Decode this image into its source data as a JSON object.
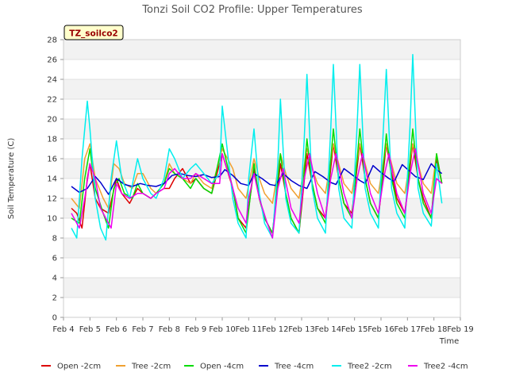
{
  "chart_data": {
    "type": "line",
    "title": "Tonzi Soil CO2 Profile: Upper Temperatures",
    "xlabel": "Time",
    "ylabel": "Soil Temperature (C)",
    "ylim": [
      0,
      28
    ],
    "xlim": [
      4,
      19
    ],
    "y_ticks": [
      0,
      2,
      4,
      6,
      8,
      10,
      12,
      14,
      16,
      18,
      20,
      22,
      24,
      26,
      28
    ],
    "x_ticks": [
      4,
      5,
      6,
      7,
      8,
      9,
      10,
      11,
      12,
      13,
      14,
      15,
      16,
      17,
      18,
      19
    ],
    "x_tick_labels": [
      "Feb 4",
      "Feb 5",
      "Feb 6",
      "Feb 7",
      "Feb 8",
      "Feb 9",
      "Feb 10",
      "Feb 11",
      "Feb 12",
      "Feb 13",
      "Feb 14",
      "Feb 15",
      "Feb 16",
      "Feb 17",
      "Feb 18",
      "Feb 19"
    ],
    "grid": "horizontal bands",
    "legend_position": "bottom",
    "annotation": "TZ_soilco2",
    "series": [
      {
        "name": "Open -2cm",
        "color": "#dd0000",
        "x": [
          4.3,
          4.5,
          4.7,
          4.9,
          5.0,
          5.2,
          5.4,
          5.7,
          6.0,
          6.2,
          6.5,
          6.8,
          7.0,
          7.3,
          7.5,
          7.8,
          8.0,
          8.2,
          8.5,
          8.8,
          9.0,
          9.3,
          9.6,
          10.0,
          10.4,
          10.6,
          10.9,
          11.2,
          11.4,
          11.6,
          11.9,
          12.2,
          12.4,
          12.6,
          12.9,
          13.2,
          13.4,
          13.6,
          13.9,
          14.2,
          14.4,
          14.6,
          14.9,
          15.2,
          15.4,
          15.6,
          15.9,
          16.2,
          16.4,
          16.6,
          16.9,
          17.2,
          17.4,
          17.6,
          17.9,
          18.1,
          18.3
        ],
        "y": [
          11.0,
          10.5,
          9.0,
          14.0,
          15.5,
          12.0,
          11.0,
          10.5,
          14.0,
          12.5,
          11.5,
          13.0,
          12.5,
          12.0,
          12.5,
          13.0,
          13.0,
          14.0,
          15.0,
          13.5,
          14.0,
          13.0,
          12.5,
          16.5,
          13.0,
          10.0,
          9.0,
          15.0,
          12.0,
          10.0,
          8.5,
          15.5,
          12.5,
          10.0,
          8.5,
          16.5,
          13.5,
          11.0,
          10.0,
          17.5,
          14.0,
          11.5,
          10.5,
          17.5,
          14.0,
          11.5,
          10.0,
          17.5,
          14.5,
          12.0,
          10.5,
          17.5,
          14.0,
          12.0,
          10.0,
          16.0,
          13.5
        ]
      },
      {
        "name": "Tree -2cm",
        "color": "#f0a030",
        "x": [
          4.3,
          4.6,
          4.8,
          5.0,
          5.2,
          5.5,
          5.7,
          5.9,
          6.1,
          6.3,
          6.6,
          6.8,
          7.0,
          7.3,
          7.5,
          7.8,
          8.0,
          8.2,
          8.5,
          8.8,
          9.0,
          9.3,
          9.6,
          10.0,
          10.4,
          10.6,
          10.9,
          11.2,
          11.4,
          11.6,
          11.9,
          12.2,
          12.4,
          12.6,
          12.9,
          13.2,
          13.4,
          13.6,
          13.9,
          14.2,
          14.4,
          14.6,
          14.9,
          15.2,
          15.4,
          15.6,
          15.9,
          16.2,
          16.4,
          16.6,
          16.9,
          17.2,
          17.4,
          17.6,
          17.9,
          18.1,
          18.3
        ],
        "y": [
          12.0,
          11.0,
          16.0,
          17.5,
          14.0,
          12.0,
          11.0,
          15.5,
          15.0,
          13.5,
          13.0,
          14.5,
          14.5,
          13.0,
          12.5,
          13.5,
          15.5,
          14.5,
          14.0,
          13.5,
          14.5,
          13.5,
          13.0,
          17.0,
          15.0,
          13.0,
          12.0,
          16.0,
          14.0,
          12.5,
          11.5,
          16.5,
          14.5,
          13.0,
          12.0,
          17.0,
          15.0,
          13.5,
          12.5,
          17.5,
          15.5,
          13.5,
          12.5,
          17.5,
          15.5,
          13.5,
          12.5,
          17.5,
          15.5,
          13.5,
          12.5,
          17.5,
          15.5,
          13.5,
          12.5,
          16.5,
          13.5
        ]
      },
      {
        "name": "Open -4cm",
        "color": "#00dd00",
        "x": [
          4.3,
          4.6,
          4.8,
          5.0,
          5.2,
          5.5,
          5.7,
          5.9,
          6.1,
          6.3,
          6.6,
          6.8,
          7.0,
          7.3,
          7.5,
          7.8,
          8.0,
          8.2,
          8.5,
          8.8,
          9.0,
          9.3,
          9.6,
          10.0,
          10.4,
          10.6,
          10.9,
          11.2,
          11.4,
          11.6,
          11.9,
          12.2,
          12.4,
          12.6,
          12.9,
          13.2,
          13.4,
          13.6,
          13.9,
          14.2,
          14.4,
          14.6,
          14.9,
          15.2,
          15.4,
          15.6,
          15.9,
          16.2,
          16.4,
          16.6,
          16.9,
          17.2,
          17.4,
          17.6,
          17.9,
          18.1,
          18.3
        ],
        "y": [
          10.0,
          9.5,
          14.0,
          17.0,
          13.0,
          10.5,
          9.0,
          13.0,
          14.0,
          12.5,
          12.0,
          13.5,
          12.5,
          12.0,
          12.5,
          13.5,
          15.0,
          14.5,
          14.0,
          13.0,
          14.0,
          13.0,
          12.5,
          17.5,
          13.0,
          10.0,
          8.5,
          15.5,
          12.0,
          10.0,
          8.5,
          16.5,
          12.5,
          10.0,
          8.5,
          18.0,
          13.5,
          11.0,
          9.5,
          19.0,
          14.0,
          11.5,
          10.0,
          19.0,
          14.0,
          11.5,
          10.0,
          18.5,
          14.0,
          11.5,
          10.0,
          19.0,
          14.0,
          11.5,
          10.0,
          16.5,
          13.5
        ]
      },
      {
        "name": "Tree -4cm",
        "color": "#0000cc",
        "x": [
          4.3,
          4.6,
          4.9,
          5.2,
          5.4,
          5.7,
          6.0,
          6.3,
          6.6,
          6.9,
          7.2,
          7.5,
          7.8,
          8.1,
          8.4,
          8.7,
          9.0,
          9.3,
          9.6,
          9.9,
          10.1,
          10.4,
          10.7,
          11.0,
          11.2,
          11.5,
          11.8,
          12.0,
          12.3,
          12.6,
          12.9,
          13.2,
          13.5,
          13.8,
          14.1,
          14.3,
          14.6,
          14.9,
          15.2,
          15.4,
          15.7,
          16.0,
          16.3,
          16.5,
          16.8,
          17.1,
          17.3,
          17.6,
          17.9,
          18.1,
          18.3
        ],
        "y": [
          13.2,
          12.6,
          13.0,
          14.2,
          13.6,
          12.4,
          14.0,
          13.4,
          13.2,
          13.5,
          13.3,
          13.2,
          13.5,
          14.3,
          14.5,
          14.3,
          14.2,
          14.4,
          14.1,
          14.2,
          14.9,
          14.3,
          13.5,
          13.3,
          14.5,
          14.0,
          13.4,
          13.3,
          14.5,
          13.8,
          13.3,
          13.0,
          14.7,
          14.2,
          13.6,
          13.4,
          15.0,
          14.4,
          13.8,
          13.5,
          15.3,
          14.6,
          14.0,
          13.7,
          15.4,
          14.7,
          14.2,
          13.9,
          15.5,
          14.9,
          14.5
        ]
      },
      {
        "name": "Tree2 -2cm",
        "color": "#00eeee",
        "x": [
          4.3,
          4.5,
          4.7,
          4.9,
          5.0,
          5.2,
          5.4,
          5.6,
          5.8,
          6.0,
          6.2,
          6.5,
          6.8,
          7.0,
          7.3,
          7.5,
          7.8,
          8.0,
          8.2,
          8.5,
          8.8,
          9.0,
          9.3,
          9.6,
          9.9,
          10.0,
          10.4,
          10.6,
          10.9,
          11.0,
          11.2,
          11.4,
          11.6,
          11.9,
          12.1,
          12.2,
          12.4,
          12.6,
          12.9,
          13.1,
          13.2,
          13.4,
          13.6,
          13.9,
          14.1,
          14.2,
          14.4,
          14.6,
          14.9,
          15.1,
          15.2,
          15.4,
          15.6,
          15.9,
          16.1,
          16.2,
          16.4,
          16.6,
          16.9,
          17.1,
          17.2,
          17.4,
          17.6,
          17.9,
          18.1,
          18.3
        ],
        "y": [
          9.0,
          8.0,
          16.0,
          21.8,
          19.0,
          12.0,
          9.0,
          7.8,
          14.0,
          17.8,
          14.0,
          12.0,
          16.0,
          14.0,
          12.5,
          12.0,
          14.0,
          17.0,
          16.0,
          14.0,
          15.0,
          15.5,
          14.5,
          13.5,
          14.5,
          21.3,
          12.0,
          9.5,
          8.0,
          14.0,
          19.0,
          12.5,
          9.5,
          8.0,
          15.5,
          22.0,
          12.0,
          9.5,
          8.5,
          18.0,
          24.5,
          13.0,
          10.0,
          8.5,
          19.0,
          25.5,
          13.0,
          10.0,
          9.0,
          19.5,
          25.5,
          13.0,
          10.5,
          9.0,
          19.5,
          25.0,
          13.0,
          10.5,
          9.0,
          19.5,
          26.5,
          13.0,
          10.5,
          9.2,
          15.5,
          11.5
        ]
      },
      {
        "name": "Tree2 -4cm",
        "color": "#ee00ee",
        "x": [
          4.3,
          4.6,
          4.8,
          5.0,
          5.2,
          5.4,
          5.6,
          5.8,
          6.0,
          6.2,
          6.5,
          6.8,
          7.0,
          7.3,
          7.5,
          7.8,
          8.0,
          8.2,
          8.5,
          8.8,
          9.0,
          9.3,
          9.6,
          9.9,
          10.0,
          10.3,
          10.6,
          10.9,
          11.0,
          11.2,
          11.4,
          11.7,
          11.9,
          12.1,
          12.3,
          12.6,
          12.9,
          13.1,
          13.3,
          13.6,
          13.9,
          14.1,
          14.3,
          14.6,
          14.9,
          15.1,
          15.3,
          15.6,
          15.9,
          16.1,
          16.3,
          16.6,
          16.9,
          17.1,
          17.3,
          17.6,
          17.9,
          18.1,
          18.3
        ],
        "y": [
          10.5,
          9.0,
          12.0,
          15.5,
          14.0,
          11.0,
          10.0,
          9.0,
          13.5,
          12.5,
          12.0,
          12.5,
          12.5,
          12.0,
          12.5,
          13.0,
          14.5,
          15.0,
          14.0,
          14.0,
          14.5,
          14.0,
          13.5,
          13.5,
          16.5,
          14.0,
          11.0,
          9.5,
          12.0,
          14.5,
          12.0,
          9.5,
          8.0,
          13.0,
          15.0,
          11.0,
          9.5,
          14.0,
          16.5,
          12.5,
          10.0,
          14.0,
          16.5,
          12.5,
          10.0,
          14.0,
          16.5,
          12.5,
          10.5,
          14.0,
          16.5,
          12.5,
          10.5,
          14.5,
          17.0,
          12.5,
          10.5,
          14.0,
          13.5
        ]
      }
    ]
  }
}
